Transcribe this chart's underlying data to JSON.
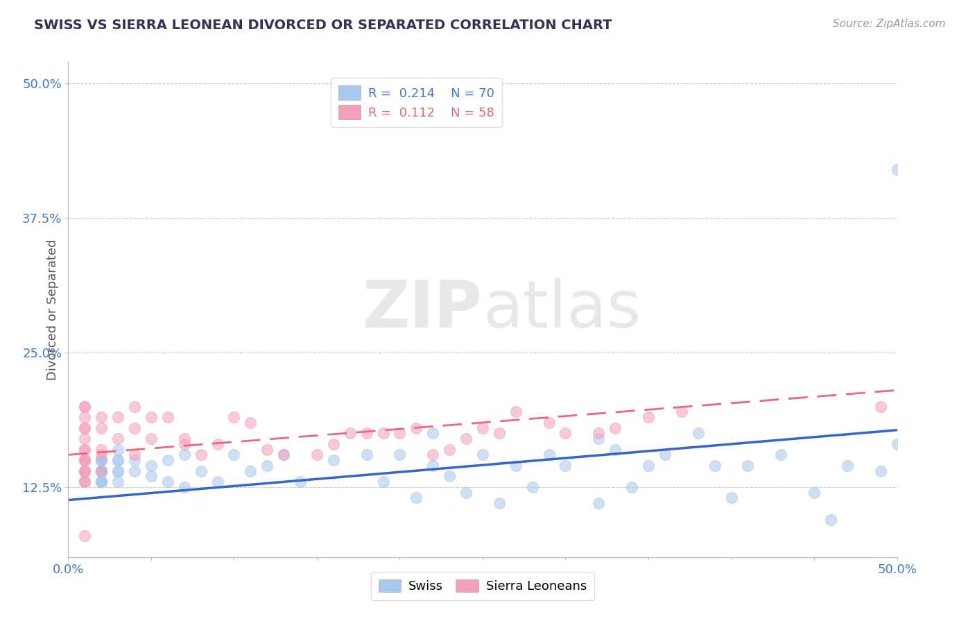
{
  "title": "SWISS VS SIERRA LEONEAN DIVORCED OR SEPARATED CORRELATION CHART",
  "source_text": "Source: ZipAtlas.com",
  "ylabel": "Divorced or Separated",
  "xlim": [
    0.0,
    0.5
  ],
  "ylim": [
    0.06,
    0.52
  ],
  "xticks": [
    0.0,
    0.05,
    0.1,
    0.15,
    0.2,
    0.25,
    0.3,
    0.35,
    0.4,
    0.45,
    0.5
  ],
  "yticks": [
    0.125,
    0.25,
    0.375,
    0.5
  ],
  "ytick_labels": [
    "12.5%",
    "25.0%",
    "37.5%",
    "50.0%"
  ],
  "swiss_R": 0.214,
  "swiss_N": 70,
  "sierra_R": 0.112,
  "sierra_N": 58,
  "swiss_color": "#A8C8EE",
  "sierra_color": "#F4A0B8",
  "swiss_line_color": "#3366CC",
  "sierra_line_color": "#EE6677",
  "background_color": "#FFFFFF",
  "grid_color": "#CCCCCC",
  "watermark_color": "#E8E8E8",
  "title_color": "#333355",
  "tick_color": "#4477CC",
  "swiss_x": [
    0.01,
    0.01,
    0.01,
    0.02,
    0.02,
    0.02,
    0.02,
    0.02,
    0.02,
    0.02,
    0.02,
    0.02,
    0.02,
    0.02,
    0.02,
    0.02,
    0.02,
    0.03,
    0.03,
    0.03,
    0.03,
    0.03,
    0.03,
    0.04,
    0.04,
    0.05,
    0.05,
    0.06,
    0.06,
    0.07,
    0.07,
    0.08,
    0.09,
    0.1,
    0.11,
    0.12,
    0.13,
    0.14,
    0.16,
    0.18,
    0.19,
    0.2,
    0.21,
    0.22,
    0.22,
    0.23,
    0.24,
    0.25,
    0.26,
    0.27,
    0.28,
    0.29,
    0.3,
    0.32,
    0.32,
    0.33,
    0.34,
    0.35,
    0.36,
    0.38,
    0.39,
    0.4,
    0.41,
    0.43,
    0.45,
    0.46,
    0.47,
    0.49,
    0.5,
    0.5
  ],
  "swiss_y": [
    0.14,
    0.15,
    0.13,
    0.15,
    0.14,
    0.13,
    0.14,
    0.15,
    0.13,
    0.14,
    0.15,
    0.14,
    0.13,
    0.15,
    0.14,
    0.13,
    0.14,
    0.15,
    0.14,
    0.13,
    0.15,
    0.14,
    0.16,
    0.14,
    0.15,
    0.145,
    0.135,
    0.15,
    0.13,
    0.155,
    0.125,
    0.14,
    0.13,
    0.155,
    0.14,
    0.145,
    0.155,
    0.13,
    0.15,
    0.155,
    0.13,
    0.155,
    0.115,
    0.145,
    0.175,
    0.135,
    0.12,
    0.155,
    0.11,
    0.145,
    0.125,
    0.155,
    0.145,
    0.11,
    0.17,
    0.16,
    0.125,
    0.145,
    0.155,
    0.175,
    0.145,
    0.115,
    0.145,
    0.155,
    0.12,
    0.095,
    0.145,
    0.14,
    0.165,
    0.42
  ],
  "sierra_x": [
    0.01,
    0.01,
    0.01,
    0.01,
    0.01,
    0.01,
    0.01,
    0.01,
    0.01,
    0.01,
    0.01,
    0.01,
    0.01,
    0.01,
    0.01,
    0.01,
    0.01,
    0.02,
    0.02,
    0.02,
    0.02,
    0.02,
    0.03,
    0.03,
    0.04,
    0.04,
    0.04,
    0.05,
    0.05,
    0.06,
    0.07,
    0.07,
    0.08,
    0.09,
    0.1,
    0.11,
    0.12,
    0.13,
    0.15,
    0.16,
    0.17,
    0.18,
    0.19,
    0.2,
    0.21,
    0.22,
    0.23,
    0.24,
    0.25,
    0.26,
    0.27,
    0.29,
    0.3,
    0.32,
    0.33,
    0.35,
    0.37,
    0.49
  ],
  "sierra_y": [
    0.15,
    0.17,
    0.14,
    0.13,
    0.16,
    0.2,
    0.18,
    0.15,
    0.18,
    0.14,
    0.16,
    0.19,
    0.2,
    0.14,
    0.13,
    0.08,
    0.15,
    0.18,
    0.16,
    0.14,
    0.19,
    0.155,
    0.17,
    0.19,
    0.2,
    0.18,
    0.155,
    0.17,
    0.19,
    0.19,
    0.165,
    0.17,
    0.155,
    0.165,
    0.19,
    0.185,
    0.16,
    0.155,
    0.155,
    0.165,
    0.175,
    0.175,
    0.175,
    0.175,
    0.18,
    0.155,
    0.16,
    0.17,
    0.18,
    0.175,
    0.195,
    0.185,
    0.175,
    0.175,
    0.18,
    0.19,
    0.195,
    0.2
  ]
}
